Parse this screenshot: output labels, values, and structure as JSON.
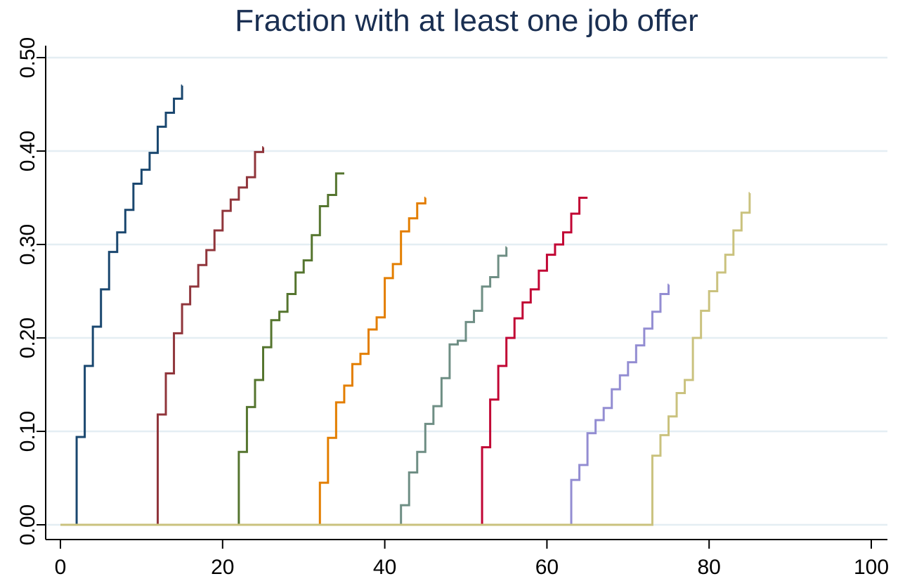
{
  "chart_data": {
    "type": "line",
    "step": true,
    "title": "Fraction with at least one job offer",
    "xlabel": "",
    "ylabel": "",
    "xlim": [
      0,
      100
    ],
    "ylim": [
      0,
      0.5
    ],
    "x_ticks": [
      0,
      20,
      40,
      60,
      80,
      100
    ],
    "x_tick_labels": [
      "0",
      "20",
      "40",
      "60",
      "80",
      "100"
    ],
    "y_ticks": [
      0,
      0.1,
      0.2,
      0.3,
      0.4,
      0.5
    ],
    "y_tick_labels": [
      "0.00",
      "0.10",
      "0.20",
      "0.30",
      "0.40",
      "0.50"
    ],
    "grid": true,
    "legend": "none",
    "series": [
      {
        "color": "#1a476f",
        "x": [
          0,
          2,
          3,
          4,
          5,
          6,
          7,
          8,
          9,
          10,
          11,
          12,
          13,
          14,
          15
        ],
        "values": [
          0,
          0.094,
          0.17,
          0.212,
          0.252,
          0.292,
          0.313,
          0.337,
          0.365,
          0.38,
          0.398,
          0.426,
          0.441,
          0.456,
          0.47
        ]
      },
      {
        "color": "#90353b",
        "x": [
          0,
          12,
          13,
          14,
          15,
          16,
          17,
          18,
          19,
          20,
          21,
          22,
          23,
          24,
          25
        ],
        "values": [
          0,
          0.118,
          0.162,
          0.205,
          0.236,
          0.255,
          0.278,
          0.294,
          0.315,
          0.336,
          0.348,
          0.361,
          0.372,
          0.399,
          0.404
        ]
      },
      {
        "color": "#55752f",
        "x": [
          0,
          22,
          23,
          24,
          25,
          26,
          27,
          28,
          29,
          30,
          31,
          32,
          33,
          34,
          35
        ],
        "values": [
          0,
          0.078,
          0.126,
          0.155,
          0.19,
          0.219,
          0.228,
          0.247,
          0.27,
          0.283,
          0.31,
          0.341,
          0.353,
          0.376,
          0.376
        ]
      },
      {
        "color": "#e37e00",
        "x": [
          0,
          32,
          33,
          34,
          35,
          36,
          37,
          38,
          39,
          40,
          41,
          42,
          43,
          44,
          45
        ],
        "values": [
          0,
          0.045,
          0.093,
          0.131,
          0.149,
          0.172,
          0.183,
          0.209,
          0.222,
          0.264,
          0.279,
          0.314,
          0.328,
          0.344,
          0.35
        ]
      },
      {
        "color": "#6e8e84",
        "x": [
          0,
          42,
          43,
          44,
          45,
          46,
          47,
          48,
          49,
          50,
          51,
          52,
          53,
          54,
          55
        ],
        "values": [
          0,
          0.021,
          0.056,
          0.078,
          0.108,
          0.127,
          0.157,
          0.193,
          0.197,
          0.217,
          0.229,
          0.255,
          0.265,
          0.288,
          0.297
        ]
      },
      {
        "color": "#c10534",
        "x": [
          0,
          52,
          53,
          54,
          55,
          56,
          57,
          58,
          59,
          60,
          61,
          62,
          63,
          64,
          65
        ],
        "values": [
          0,
          0.083,
          0.134,
          0.17,
          0.2,
          0.221,
          0.238,
          0.252,
          0.272,
          0.289,
          0.3,
          0.313,
          0.333,
          0.35,
          0.35
        ]
      },
      {
        "color": "#938dd2",
        "x": [
          0,
          63,
          64,
          65,
          66,
          67,
          68,
          69,
          70,
          71,
          72,
          73,
          74,
          75
        ],
        "values": [
          0,
          0.048,
          0.064,
          0.098,
          0.112,
          0.125,
          0.145,
          0.16,
          0.174,
          0.192,
          0.21,
          0.228,
          0.247,
          0.257
        ]
      },
      {
        "color": "#cac27e",
        "x": [
          0,
          73,
          74,
          75,
          76,
          77,
          78,
          79,
          80,
          81,
          82,
          83,
          84,
          85
        ],
        "values": [
          0,
          0.074,
          0.096,
          0.116,
          0.141,
          0.155,
          0.2,
          0.229,
          0.25,
          0.27,
          0.289,
          0.315,
          0.334,
          0.355
        ]
      }
    ]
  }
}
